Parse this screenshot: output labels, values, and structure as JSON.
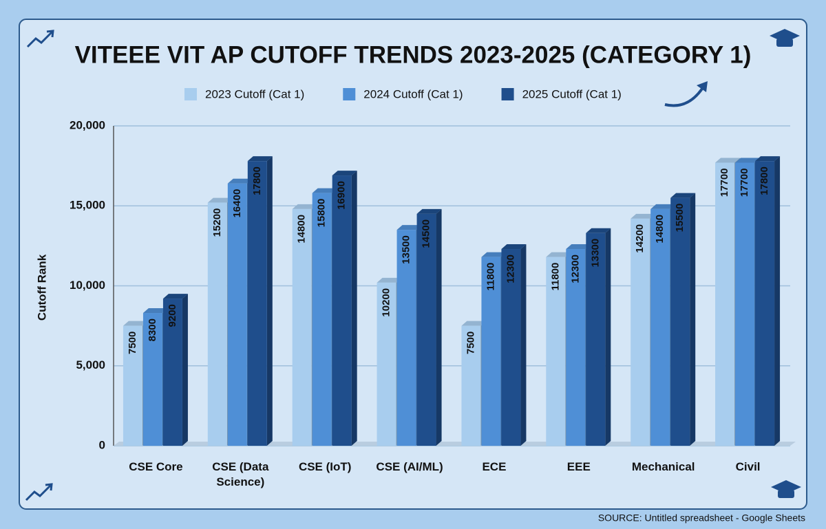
{
  "chart_data": {
    "type": "bar3d",
    "title": "VITEEE VIT AP CUTOFF TRENDS 2023-2025 (CATEGORY 1)",
    "y_label": "Cutoff Rank",
    "source": "SOURCE: Untitled spreadsheet - Google Sheets",
    "categories": [
      "CSE Core",
      "CSE (Data Science)",
      "CSE (IoT)",
      "CSE (AI/ML)",
      "ECE",
      "EEE",
      "Mechanical",
      "Civil"
    ],
    "series": [
      {
        "name": "2023 Cutoff (Cat 1)",
        "color": "#a8cdee",
        "values": [
          7500,
          15200,
          14800,
          10200,
          7500,
          11800,
          14200,
          17700
        ]
      },
      {
        "name": "2024 Cutoff (Cat 1)",
        "color": "#4f8fd6",
        "values": [
          8300,
          16400,
          15800,
          13500,
          11800,
          12300,
          14800,
          17700
        ]
      },
      {
        "name": "2025 Cutoff (Cat 1)",
        "color": "#1f4e8c",
        "values": [
          9200,
          17800,
          16900,
          14500,
          12300,
          13300,
          15500,
          17800
        ]
      }
    ],
    "ylim": [
      0,
      20000
    ],
    "yticks": [
      0,
      {
        "value": 5000,
        "label": "5,000"
      },
      {
        "value": 10000,
        "label": "10,000"
      },
      {
        "value": 15000,
        "label": "15,000"
      },
      {
        "value": 20000,
        "label": "20,000"
      }
    ],
    "grid": true
  }
}
